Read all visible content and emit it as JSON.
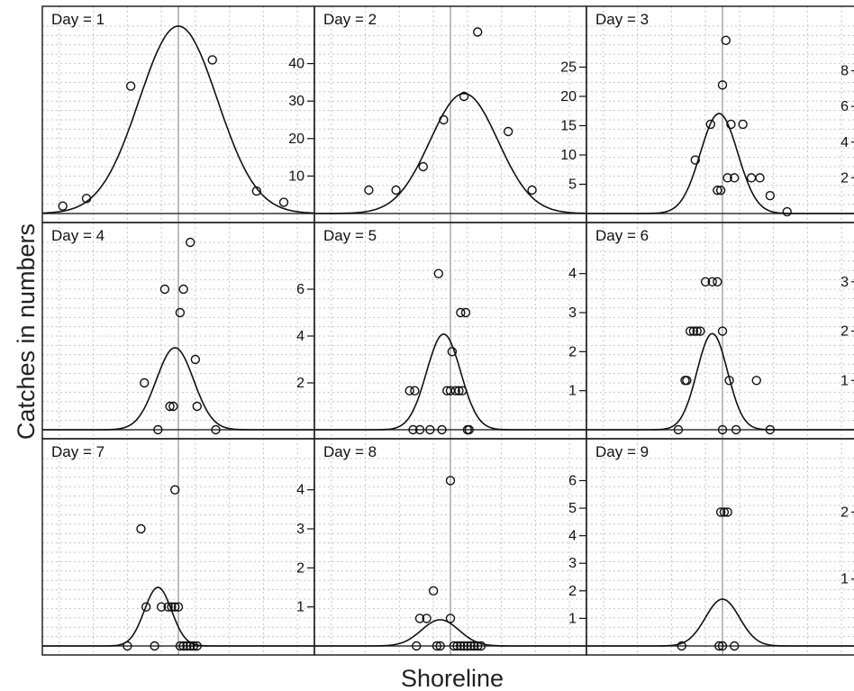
{
  "chart_data": {
    "type": "scatter",
    "xlabel": "Shoreline",
    "ylabel": "Catches in numbers",
    "grid": true,
    "panels": [
      {
        "label": "Day = 1",
        "ylim": [
          0,
          50
        ],
        "yticks": [
          10,
          20,
          30,
          40
        ],
        "points": [
          [
            -3.4,
            2
          ],
          [
            -2.7,
            4
          ],
          [
            -1.4,
            34
          ],
          [
            1.0,
            41
          ],
          [
            2.3,
            6
          ],
          [
            3.1,
            3
          ]
        ],
        "curve": {
          "mu": 0,
          "sigma": 1.15,
          "peak": 50
        }
      },
      {
        "label": "Day = 2",
        "ylim": [
          0,
          32
        ],
        "yticks": [
          5,
          10,
          15,
          20,
          25
        ],
        "points": [
          [
            -2.4,
            4
          ],
          [
            -1.6,
            4
          ],
          [
            -0.8,
            8
          ],
          [
            -0.2,
            16
          ],
          [
            0.4,
            20
          ],
          [
            0.8,
            31
          ],
          [
            1.7,
            14
          ],
          [
            2.4,
            4
          ]
        ],
        "curve": {
          "mu": 0.4,
          "sigma": 1.0,
          "peak": 20.5
        }
      },
      {
        "label": "Day = 3",
        "ylim": [
          0,
          10.5
        ],
        "yticks": [
          2,
          4,
          6,
          8
        ],
        "points": [
          [
            -0.8,
            3
          ],
          [
            -0.35,
            5
          ],
          [
            -0.15,
            1.3
          ],
          [
            -0.05,
            1.3
          ],
          [
            0.0,
            7.2
          ],
          [
            0.1,
            9.7
          ],
          [
            0.15,
            2
          ],
          [
            0.25,
            5
          ],
          [
            0.35,
            2
          ],
          [
            0.6,
            5
          ],
          [
            0.85,
            2
          ],
          [
            1.1,
            2
          ],
          [
            1.4,
            1
          ],
          [
            1.9,
            0.1
          ]
        ],
        "curve": {
          "mu": -0.1,
          "sigma": 0.55,
          "peak": 5.6
        }
      },
      {
        "label": "Day = 4",
        "ylim": [
          0,
          8
        ],
        "yticks": [
          2,
          4,
          6
        ],
        "points": [
          [
            -1.0,
            2
          ],
          [
            -0.6,
            0
          ],
          [
            -0.4,
            6
          ],
          [
            -0.25,
            1
          ],
          [
            -0.15,
            1
          ],
          [
            0.05,
            5
          ],
          [
            0.15,
            6
          ],
          [
            0.35,
            8
          ],
          [
            0.5,
            3
          ],
          [
            0.55,
            1
          ],
          [
            1.1,
            0
          ]
        ],
        "curve": {
          "mu": -0.1,
          "sigma": 0.55,
          "peak": 3.5
        }
      },
      {
        "label": "Day = 5",
        "ylim": [
          0,
          4.8
        ],
        "yticks": [
          1,
          2,
          3,
          4
        ],
        "points": [
          [
            -1.2,
            1
          ],
          [
            -1.05,
            1
          ],
          [
            -1.1,
            0
          ],
          [
            -0.9,
            0
          ],
          [
            -0.6,
            0
          ],
          [
            -0.35,
            4
          ],
          [
            -0.25,
            0
          ],
          [
            -0.1,
            1
          ],
          [
            0.0,
            1
          ],
          [
            0.05,
            2
          ],
          [
            0.15,
            1
          ],
          [
            0.25,
            1
          ],
          [
            0.3,
            3
          ],
          [
            0.35,
            1
          ],
          [
            0.45,
            3
          ],
          [
            0.5,
            0
          ],
          [
            0.55,
            0
          ]
        ],
        "curve": {
          "mu": -0.2,
          "sigma": 0.5,
          "peak": 2.45
        }
      },
      {
        "label": "Day = 6",
        "ylim": [
          0,
          3.8
        ],
        "yticks": [
          1,
          2,
          3
        ],
        "points": [
          [
            -1.3,
            0
          ],
          [
            -1.1,
            1
          ],
          [
            -1.05,
            1
          ],
          [
            -0.95,
            2
          ],
          [
            -0.85,
            2
          ],
          [
            -0.75,
            2
          ],
          [
            -0.65,
            2
          ],
          [
            -0.5,
            3
          ],
          [
            -0.3,
            3
          ],
          [
            -0.15,
            3
          ],
          [
            0.0,
            0
          ],
          [
            0.0,
            2
          ],
          [
            0.2,
            1
          ],
          [
            0.4,
            0
          ],
          [
            1.0,
            1
          ],
          [
            1.4,
            0
          ]
        ],
        "curve": {
          "mu": -0.3,
          "sigma": 0.45,
          "peak": 1.95
        }
      },
      {
        "label": "Day = 7",
        "ylim": [
          0,
          4.8
        ],
        "yticks": [
          1,
          2,
          3,
          4
        ],
        "points": [
          [
            -1.5,
            0
          ],
          [
            -1.1,
            3
          ],
          [
            -0.95,
            1
          ],
          [
            -0.7,
            0
          ],
          [
            -0.5,
            1
          ],
          [
            -0.3,
            1
          ],
          [
            -0.2,
            1
          ],
          [
            -0.1,
            1
          ],
          [
            0.0,
            1
          ],
          [
            -0.1,
            4
          ],
          [
            0.05,
            0
          ],
          [
            0.15,
            0
          ],
          [
            0.25,
            0
          ],
          [
            0.35,
            0
          ],
          [
            0.45,
            0
          ],
          [
            0.55,
            0
          ]
        ],
        "curve": {
          "mu": -0.6,
          "sigma": 0.4,
          "peak": 1.5
        }
      },
      {
        "label": "Day = 8",
        "ylim": [
          0,
          6.8
        ],
        "yticks": [
          1,
          2,
          3,
          4,
          5,
          6
        ],
        "points": [
          [
            -1.0,
            0
          ],
          [
            -0.9,
            1
          ],
          [
            -0.7,
            1
          ],
          [
            -0.5,
            2
          ],
          [
            -0.4,
            0
          ],
          [
            -0.3,
            0
          ],
          [
            0.0,
            1
          ],
          [
            0.0,
            6
          ],
          [
            0.1,
            0
          ],
          [
            0.2,
            0
          ],
          [
            0.3,
            0
          ],
          [
            0.4,
            0
          ],
          [
            0.5,
            0
          ],
          [
            0.6,
            0
          ],
          [
            0.7,
            0
          ],
          [
            0.8,
            0
          ],
          [
            0.9,
            0
          ]
        ],
        "curve": {
          "mu": -0.3,
          "sigma": 0.55,
          "peak": 0.95
        }
      },
      {
        "label": "Day = 9",
        "ylim": [
          0,
          2.8
        ],
        "yticks": [
          1,
          2
        ],
        "points": [
          [
            -1.2,
            0
          ],
          [
            -0.1,
            0
          ],
          [
            0.0,
            0
          ],
          [
            -0.05,
            2
          ],
          [
            0.05,
            2
          ],
          [
            0.15,
            2
          ],
          [
            0.35,
            0
          ]
        ],
        "curve": {
          "mu": 0.0,
          "sigma": 0.5,
          "peak": 0.7
        }
      }
    ]
  }
}
